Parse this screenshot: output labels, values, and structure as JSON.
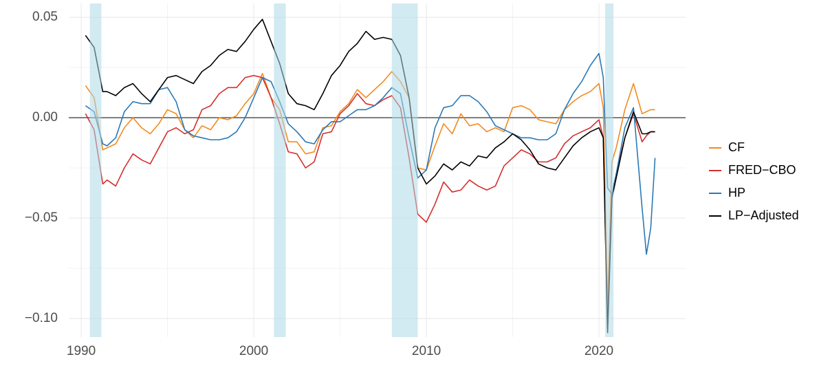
{
  "chart_data": {
    "type": "line",
    "x": [
      1990.25,
      1990.75,
      1991.25,
      1991.5,
      1992,
      1992.5,
      1993,
      1993.5,
      1994,
      1994.5,
      1995,
      1995.5,
      1996,
      1996.5,
      1997,
      1997.5,
      1998,
      1998.5,
      1999,
      1999.5,
      2000,
      2000.5,
      2001,
      2001.5,
      2002,
      2002.5,
      2003,
      2003.5,
      2004,
      2004.5,
      2005,
      2005.5,
      2006,
      2006.5,
      2007,
      2007.5,
      2008,
      2008.5,
      2009,
      2009.5,
      2010,
      2010.5,
      2011,
      2011.5,
      2012,
      2012.5,
      2013,
      2013.5,
      2014,
      2014.5,
      2015,
      2015.5,
      2016,
      2016.5,
      2017,
      2017.5,
      2018,
      2018.5,
      2019,
      2019.5,
      2020,
      2020.25,
      2020.5,
      2020.75,
      2021,
      2021.5,
      2022,
      2022.5,
      2022.75,
      2023,
      2023.25
    ],
    "series": [
      {
        "name": "CF",
        "color": "#f28a1e",
        "values": [
          0.016,
          0.01,
          -0.016,
          -0.015,
          -0.013,
          -0.005,
          0.0,
          -0.005,
          -0.008,
          -0.003,
          0.004,
          0.002,
          -0.006,
          -0.01,
          -0.004,
          -0.006,
          0.0,
          -0.001,
          0.001,
          0.007,
          0.012,
          0.022,
          0.01,
          0.004,
          -0.012,
          -0.012,
          -0.018,
          -0.017,
          -0.005,
          -0.004,
          0.003,
          0.007,
          0.014,
          0.01,
          0.014,
          0.018,
          0.023,
          0.018,
          0.01,
          -0.025,
          -0.026,
          -0.014,
          -0.003,
          -0.008,
          0.002,
          -0.004,
          -0.003,
          -0.007,
          -0.005,
          -0.007,
          0.005,
          0.006,
          0.004,
          -0.001,
          -0.002,
          -0.003,
          0.004,
          0.008,
          0.011,
          0.013,
          0.017,
          0.005,
          -0.095,
          -0.022,
          -0.015,
          0.004,
          0.017,
          0.002,
          0.003,
          0.004,
          0.004
        ]
      },
      {
        "name": "FRED−CBO",
        "color": "#d62d2d",
        "values": [
          0.002,
          -0.006,
          -0.033,
          -0.031,
          -0.034,
          -0.025,
          -0.018,
          -0.021,
          -0.023,
          -0.015,
          -0.007,
          -0.005,
          -0.008,
          -0.006,
          0.004,
          0.006,
          0.012,
          0.015,
          0.015,
          0.02,
          0.021,
          0.02,
          0.01,
          -0.003,
          -0.017,
          -0.018,
          -0.025,
          -0.022,
          -0.008,
          -0.007,
          0.002,
          0.006,
          0.012,
          0.007,
          0.006,
          0.009,
          0.011,
          0.005,
          -0.02,
          -0.048,
          -0.052,
          -0.043,
          -0.032,
          -0.037,
          -0.036,
          -0.031,
          -0.034,
          -0.036,
          -0.034,
          -0.024,
          -0.02,
          -0.016,
          -0.018,
          -0.022,
          -0.022,
          -0.02,
          -0.013,
          -0.009,
          -0.007,
          -0.005,
          -0.001,
          -0.01,
          -0.105,
          -0.038,
          -0.028,
          -0.01,
          0.002,
          -0.012,
          -0.009,
          -0.007,
          -0.007
        ]
      },
      {
        "name": "HP",
        "color": "#2a78b5",
        "values": [
          0.006,
          0.003,
          -0.013,
          -0.014,
          -0.01,
          0.003,
          0.008,
          0.007,
          0.007,
          0.014,
          0.015,
          0.008,
          -0.006,
          -0.009,
          -0.01,
          -0.011,
          -0.011,
          -0.01,
          -0.007,
          0.0,
          0.01,
          0.02,
          0.018,
          0.008,
          -0.003,
          -0.007,
          -0.012,
          -0.013,
          -0.006,
          -0.002,
          -0.002,
          0.001,
          0.004,
          0.004,
          0.006,
          0.01,
          0.015,
          0.012,
          -0.01,
          -0.03,
          -0.026,
          -0.005,
          0.005,
          0.006,
          0.011,
          0.011,
          0.008,
          0.003,
          -0.004,
          -0.006,
          -0.008,
          -0.01,
          -0.01,
          -0.011,
          -0.011,
          -0.008,
          0.004,
          0.012,
          0.018,
          0.026,
          0.032,
          0.02,
          -0.035,
          -0.038,
          -0.028,
          -0.005,
          0.005,
          -0.045,
          -0.068,
          -0.055,
          -0.02
        ]
      },
      {
        "name": "LP−Adjusted",
        "color": "#000000",
        "values": [
          0.041,
          0.035,
          0.013,
          0.013,
          0.011,
          0.015,
          0.017,
          0.012,
          0.008,
          0.014,
          0.02,
          0.021,
          0.019,
          0.017,
          0.023,
          0.026,
          0.031,
          0.034,
          0.033,
          0.038,
          0.044,
          0.049,
          0.038,
          0.027,
          0.012,
          0.007,
          0.006,
          0.004,
          0.012,
          0.021,
          0.026,
          0.033,
          0.037,
          0.043,
          0.039,
          0.04,
          0.039,
          0.031,
          0.01,
          -0.025,
          -0.033,
          -0.029,
          -0.023,
          -0.026,
          -0.022,
          -0.024,
          -0.019,
          -0.02,
          -0.015,
          -0.012,
          -0.008,
          -0.011,
          -0.016,
          -0.023,
          -0.025,
          -0.026,
          -0.02,
          -0.014,
          -0.01,
          -0.007,
          -0.005,
          -0.01,
          -0.107,
          -0.04,
          -0.03,
          -0.01,
          0.003,
          -0.008,
          -0.008,
          -0.007,
          -0.007
        ]
      }
    ],
    "shaded_regions": [
      [
        1990.5,
        1991.17
      ],
      [
        2001.17,
        2001.85
      ],
      [
        2008.0,
        2009.5
      ],
      [
        2020.36,
        2020.84
      ]
    ],
    "shade_color": "#add8e6",
    "hline": 0,
    "xlim": [
      1989.28,
      2025.02
    ],
    "ylim": [
      -0.1092,
      0.0569
    ],
    "xticks": [
      1990,
      2000,
      2010,
      2020
    ],
    "yticks": [
      {
        "value": -0.1,
        "label": "−0.10"
      },
      {
        "value": -0.05,
        "label": "−0.05"
      },
      {
        "value": 0,
        "label": "0.00"
      },
      0.05
    ],
    "grid": true,
    "legend": "right"
  }
}
